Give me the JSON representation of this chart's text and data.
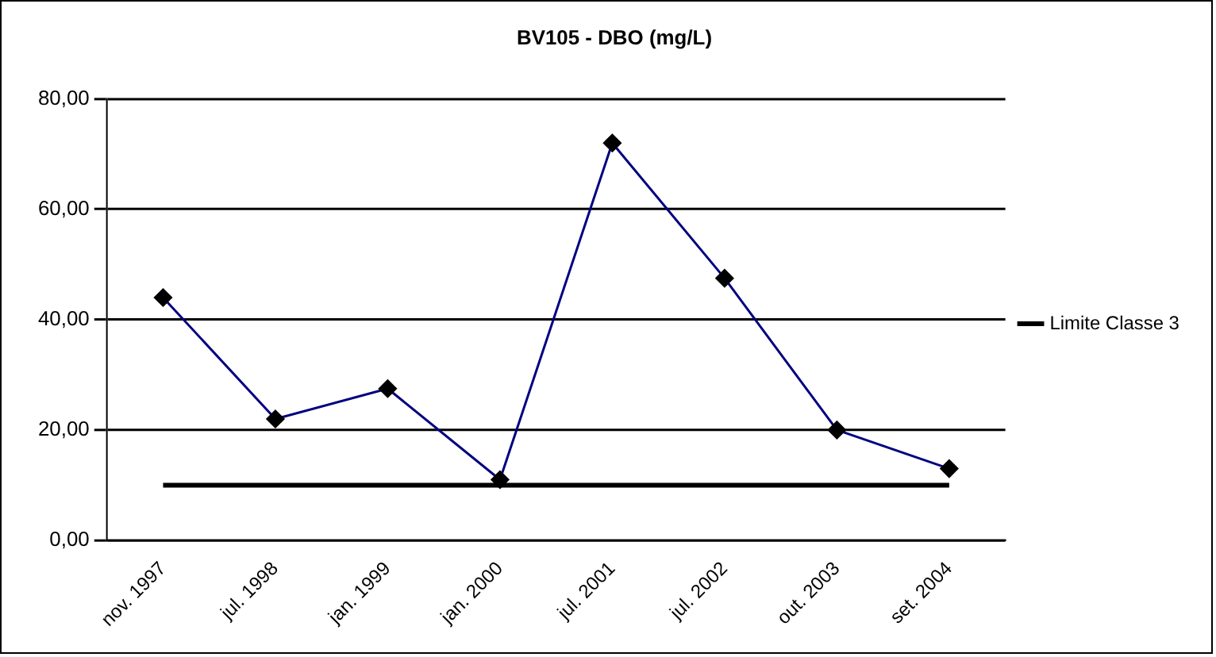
{
  "chart_data": {
    "type": "line",
    "title": "BV105 - DBO (mg/L)",
    "categories": [
      "nov. 1997",
      "jul. 1998",
      "jan. 1999",
      "jan. 2000",
      "jul. 2001",
      "jul. 2002",
      "out. 2003",
      "set. 2004"
    ],
    "series": [
      {
        "color": "#000080",
        "marker": "diamond",
        "values": [
          44,
          22,
          27.5,
          11,
          72,
          47.5,
          20,
          13
        ]
      },
      {
        "name": "Limite Classe 3",
        "color": "#000000",
        "marker": "none",
        "values": [
          10,
          10,
          10,
          10,
          10,
          10,
          10,
          10
        ]
      }
    ],
    "ylim": [
      0,
      80
    ],
    "yticks": [
      {
        "value": 0,
        "label": "0,00"
      },
      {
        "value": 20,
        "label": "20,00"
      },
      {
        "value": 40,
        "label": "40,00"
      },
      {
        "value": 60,
        "label": "60,00"
      },
      {
        "value": 80,
        "label": "80,00"
      }
    ],
    "grid": "y",
    "legend": "right"
  }
}
